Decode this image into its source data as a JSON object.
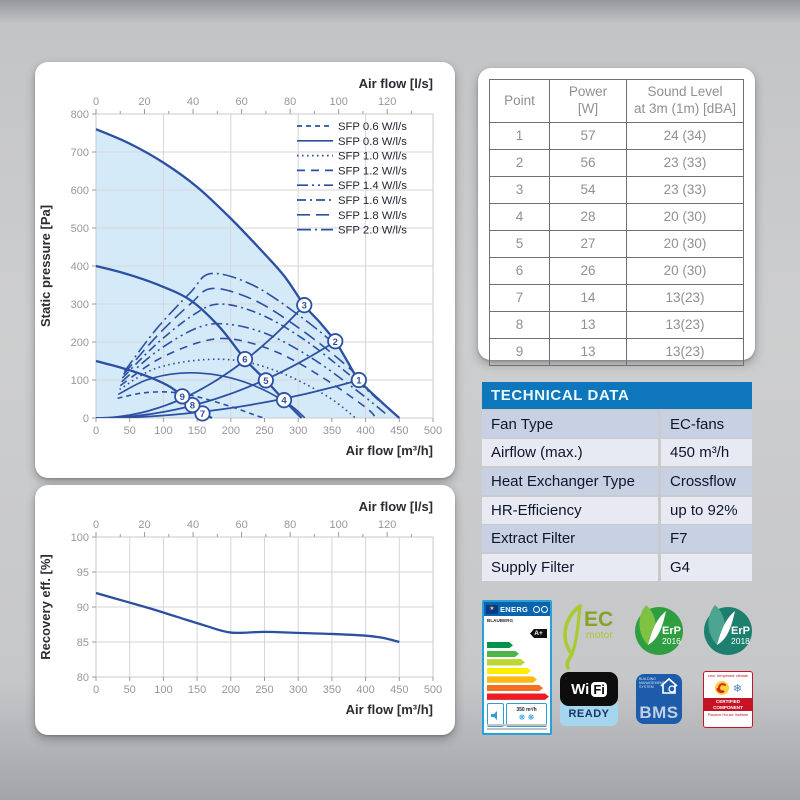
{
  "chart_data": [
    {
      "type": "line",
      "title": "Fan performance curves",
      "top_axis_label": "Air flow [l/s]",
      "bottom_axis_label": "Air flow [m³/h]",
      "y_axis_label": "Static pressure [Pa]",
      "xlim": [
        0,
        500
      ],
      "ylim": [
        0,
        800
      ],
      "x_bottom_ticks": [
        0,
        50,
        100,
        150,
        200,
        250,
        300,
        350,
        400,
        450,
        500
      ],
      "x_top_ticks_ls": [
        0,
        20,
        40,
        60,
        80,
        100,
        120
      ],
      "y_ticks": [
        0,
        100,
        200,
        300,
        400,
        500,
        600,
        700,
        800
      ],
      "grid": "on",
      "legend_position": "upper-right",
      "legend": [
        {
          "label": "SFP 0.6 W/l/s",
          "dash": "5 4"
        },
        {
          "label": "SFP 0.8 W/l/s",
          "dash": ""
        },
        {
          "label": "SFP 1.0 W/l/s",
          "dash": "1.6 3.4"
        },
        {
          "label": "SFP 1.2 W/l/s",
          "dash": "8 6"
        },
        {
          "label": "SFP 1.4 W/l/s",
          "dash": "11 4 2 4 2 4"
        },
        {
          "label": "SFP 1.6 W/l/s",
          "dash": "9 4 2 4"
        },
        {
          "label": "SFP 1.8 W/l/s",
          "dash": "13 6"
        },
        {
          "label": "SFP 2.0 W/l/s",
          "dash": "14 4 2 4"
        }
      ],
      "series": [
        {
          "name": "fan-speed-max",
          "role": "speed",
          "dash": "",
          "points": [
            [
              0,
              760
            ],
            [
              50,
              722
            ],
            [
              100,
              672
            ],
            [
              150,
              608
            ],
            [
              200,
              525
            ],
            [
              250,
              432
            ],
            [
              280,
              372
            ],
            [
              309,
              297
            ],
            [
              332,
              252
            ],
            [
              355,
              202
            ],
            [
              372,
              152
            ],
            [
              390,
              100
            ],
            [
              420,
              48
            ],
            [
              450,
              0
            ]
          ]
        },
        {
          "name": "fan-speed-mid",
          "role": "speed",
          "dash": "",
          "points": [
            [
              0,
              400
            ],
            [
              40,
              382
            ],
            [
              90,
              352
            ],
            [
              140,
              310
            ],
            [
              183,
              240
            ],
            [
              221,
              155
            ],
            [
              252,
              99
            ],
            [
              279,
              47
            ],
            [
              305,
              0
            ]
          ]
        },
        {
          "name": "fan-speed-low",
          "role": "speed",
          "dash": "",
          "points": [
            [
              0,
              150
            ],
            [
              40,
              131
            ],
            [
              80,
              107
            ],
            [
              110,
              82
            ],
            [
              128,
              57
            ],
            [
              143,
              34
            ],
            [
              158,
              12
            ],
            [
              172,
              0
            ]
          ]
        },
        {
          "name": "SFP 0.6 W/l/s",
          "role": "sfp",
          "dash": "5 4",
          "points": [
            [
              32,
              52
            ],
            [
              70,
              66
            ],
            [
              110,
              68
            ],
            [
              150,
              56
            ],
            [
              200,
              30
            ],
            [
              240,
              5
            ],
            [
              250,
              0
            ]
          ]
        },
        {
          "name": "SFP 0.8 W/l/s",
          "role": "sfp",
          "dash": "",
          "points": [
            [
              33,
              62
            ],
            [
              75,
              100
            ],
            [
              125,
              118
            ],
            [
              180,
              113
            ],
            [
              235,
              85
            ],
            [
              285,
              38
            ],
            [
              310,
              0
            ]
          ]
        },
        {
          "name": "SFP 1.0 W/l/s",
          "role": "sfp",
          "dash": "1.6 3.4",
          "points": [
            [
              35,
              75
            ],
            [
              85,
              128
            ],
            [
              150,
              152
            ],
            [
              215,
              150
            ],
            [
              280,
              115
            ],
            [
              345,
              55
            ],
            [
              385,
              0
            ]
          ]
        },
        {
          "name": "SFP 1.2 W/l/s",
          "role": "sfp",
          "dash": "8 6",
          "points": [
            [
              36,
              85
            ],
            [
              90,
              152
            ],
            [
              155,
              200
            ],
            [
              205,
              207
            ],
            [
              270,
              172
            ],
            [
              335,
              108
            ],
            [
              400,
              28
            ],
            [
              415,
              0
            ]
          ]
        },
        {
          "name": "SFP 1.4 W/l/s",
          "role": "sfp",
          "dash": "11 4 2 4 2 4",
          "points": [
            [
              38,
              95
            ],
            [
              90,
              175
            ],
            [
              150,
              237
            ],
            [
              195,
              247
            ],
            [
              255,
              220
            ],
            [
              320,
              158
            ],
            [
              385,
              75
            ],
            [
              432,
              8
            ]
          ]
        },
        {
          "name": "SFP 1.6 W/l/s",
          "role": "sfp",
          "dash": "9 4 2 4",
          "points": [
            [
              39,
              105
            ],
            [
              90,
              195
            ],
            [
              145,
              272
            ],
            [
              185,
              300
            ],
            [
              245,
              272
            ],
            [
              310,
              205
            ],
            [
              375,
              115
            ],
            [
              430,
              30
            ]
          ]
        },
        {
          "name": "SFP 1.8 W/l/s",
          "role": "sfp",
          "dash": "13 6",
          "points": [
            [
              41,
              115
            ],
            [
              90,
              215
            ],
            [
              140,
              300
            ],
            [
              173,
              341
            ],
            [
              235,
              310
            ],
            [
              300,
              238
            ],
            [
              365,
              148
            ],
            [
              430,
              42
            ]
          ]
        },
        {
          "name": "SFP 2.0 W/l/s",
          "role": "sfp",
          "dash": "14 4 2 4",
          "points": [
            [
              42,
              122
            ],
            [
              90,
              235
            ],
            [
              140,
              330
            ],
            [
              170,
              380
            ],
            [
              230,
              352
            ],
            [
              295,
              278
            ],
            [
              360,
              185
            ],
            [
              425,
              70
            ]
          ]
        }
      ],
      "system_curves": [
        {
          "k": 0.00311,
          "xmax": 309
        },
        {
          "k": 0.0016,
          "xmax": 355
        },
        {
          "k": 0.000657,
          "xmax": 390
        }
      ],
      "operating_points": [
        {
          "n": "1",
          "x": 390,
          "y": 100
        },
        {
          "n": "2",
          "x": 355,
          "y": 202
        },
        {
          "n": "3",
          "x": 309,
          "y": 297
        },
        {
          "n": "4",
          "x": 279,
          "y": 47
        },
        {
          "n": "5",
          "x": 252,
          "y": 99
        },
        {
          "n": "6",
          "x": 221,
          "y": 155
        },
        {
          "n": "7",
          "x": 158,
          "y": 12
        },
        {
          "n": "8",
          "x": 143,
          "y": 34
        },
        {
          "n": "9",
          "x": 128,
          "y": 57
        }
      ]
    },
    {
      "type": "line",
      "title": "Heat recovery efficiency",
      "top_axis_label": "Air flow [l/s]",
      "bottom_axis_label": "Air flow [m³/h]",
      "y_axis_label": "Recovery eff. [%]",
      "xlim": [
        0,
        500
      ],
      "ylim": [
        80,
        100
      ],
      "x_bottom_ticks": [
        0,
        50,
        100,
        150,
        200,
        250,
        300,
        350,
        400,
        450,
        500
      ],
      "x_top_ticks_ls": [
        0,
        20,
        40,
        60,
        80,
        100,
        120
      ],
      "y_ticks": [
        80,
        85,
        90,
        95,
        100
      ],
      "grid": "on",
      "series": [
        {
          "name": "recovery-efficiency",
          "role": "speed",
          "dash": "",
          "points": [
            [
              0,
              92
            ],
            [
              40,
              90.9
            ],
            [
              80,
              89.8
            ],
            [
              120,
              88.6
            ],
            [
              160,
              87.4
            ],
            [
              200,
              86.35
            ],
            [
              250,
              86.45
            ],
            [
              300,
              86.3
            ],
            [
              350,
              86.15
            ],
            [
              400,
              85.9
            ],
            [
              425,
              85.6
            ],
            [
              450,
              85
            ]
          ]
        }
      ]
    }
  ],
  "sound_table": {
    "headers": [
      [
        "Point"
      ],
      [
        "Power",
        "[W]"
      ],
      [
        "Sound Level",
        "at 3m (1m) [dBA]"
      ]
    ],
    "rows": [
      [
        "1",
        "57",
        "24 (34)"
      ],
      [
        "2",
        "56",
        "23 (33)"
      ],
      [
        "3",
        "54",
        "23 (33)"
      ],
      [
        "4",
        "28",
        "20 (30)"
      ],
      [
        "5",
        "27",
        "20 (30)"
      ],
      [
        "6",
        "26",
        "20 (30)"
      ],
      [
        "7",
        "14",
        "13(23)"
      ],
      [
        "8",
        "13",
        "13(23)"
      ],
      [
        "9",
        "13",
        "13(23)"
      ]
    ]
  },
  "technical_data": {
    "title": "TECHNICAL DATA",
    "rows": [
      {
        "label": "Fan Type",
        "value": "EC-fans"
      },
      {
        "label": "Airflow (max.)",
        "value": "450 m³/h"
      },
      {
        "label": "Heat Exchanger Type",
        "value": "Crossflow"
      },
      {
        "label": "HR-Efficiency",
        "value": "up to 92%"
      },
      {
        "label": "Extract Filter",
        "value": "F7"
      },
      {
        "label": "Supply Filter",
        "value": "G4"
      }
    ]
  },
  "badges": {
    "energy_label": {
      "header": "ENERG",
      "flag": "★",
      "brand": "BLAUBERG",
      "energy_class": "A+",
      "airflow": "350 m³/h",
      "fans": "❋ ❋",
      "bar_colors": [
        "#00934a",
        "#4cb648",
        "#bed630",
        "#ffed00",
        "#fdb913",
        "#f36f21",
        "#ed1c24"
      ]
    },
    "ec_motor": {
      "line1": "EC",
      "line2": "motor",
      "color_leaf": "#a8cb2f",
      "color_text": "#87a523"
    },
    "erp_2016": {
      "label": "ErP",
      "year": "2016",
      "color": "#2f9e41"
    },
    "erp_2018": {
      "label": "ErP",
      "year": "2018",
      "color": "#1d7f6e"
    },
    "wifi": {
      "wi": "Wi",
      "fi": "Fi",
      "ready": "READY"
    },
    "bms": {
      "small": "BUILDING MANAGEMENT SYSTEM",
      "big": "BMS"
    },
    "certified": {
      "top": "cool, temperate climate",
      "band_line1": "CERTIFIED",
      "band_line2": "COMPONENT",
      "bottom": "Passive House Institute",
      "snowflake": "❄"
    }
  },
  "colors": {
    "curve_blue": "#2b50a1",
    "fill_blue": "rgba(190,223,246,0.65)",
    "grid": "#d6d6d8",
    "tick_text": "#97979b",
    "axis_title": "#2b2b31",
    "tech_header_bg": "#0e76bb",
    "tech_row_odd": "#c8d1e3",
    "tech_row_even": "#e7eaf2"
  }
}
